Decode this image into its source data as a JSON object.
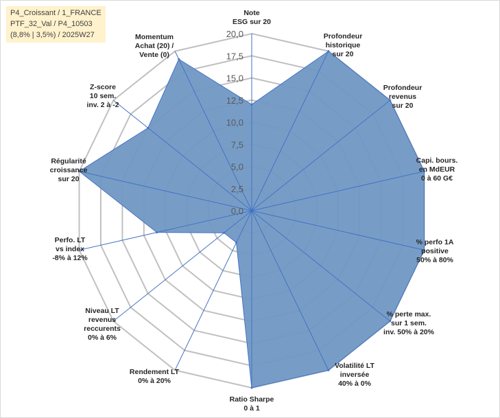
{
  "info_box": {
    "line1": "P4_Croissant / 1_FRANCE",
    "line2": "PTF_32_Val / P4_10503",
    "line3": "(8,8% | 3,5%) / 2025W27"
  },
  "colors": {
    "fill": "#7098c4",
    "stroke": "#4472c4",
    "grid": "#c0c0c0",
    "info_bg": "#fff2cc"
  },
  "chart_data": {
    "type": "radar",
    "rmax": 20,
    "tick_values": [
      0,
      2.5,
      5,
      7.5,
      10,
      12.5,
      15,
      17.5,
      20
    ],
    "tick_labels": [
      "0,0",
      "2,5",
      "5,0",
      "7,5",
      "10,0",
      "12,5",
      "15,0",
      "17,5",
      "20,0"
    ],
    "axes": [
      {
        "label": [
          "Note",
          "ESG sur 20"
        ],
        "value": 12
      },
      {
        "label": [
          "Profondeur",
          "historique",
          "sur 20"
        ],
        "value": 20
      },
      {
        "label": [
          "Profondeur",
          "revenus",
          "sur 20"
        ],
        "value": 20
      },
      {
        "label": [
          "Capi. bours.",
          "en MdEUR",
          "0 à 60 G€"
        ],
        "value": 20
      },
      {
        "label": [
          "% perfo 1A",
          "positive",
          "50% à 80%"
        ],
        "value": 20
      },
      {
        "label": [
          "% perte max.",
          "sur 1 sem.",
          "inv. 50% à 20%"
        ],
        "value": 20
      },
      {
        "label": [
          "Volatilité LT",
          "inversée",
          "40% à 0%"
        ],
        "value": 20
      },
      {
        "label": [
          "Ratio Sharpe",
          "0 à 1"
        ],
        "value": 20
      },
      {
        "label": [
          "Rendement LT",
          "0% à 20%"
        ],
        "value": 4
      },
      {
        "label": [
          "Niveau LT",
          "revenus",
          "reccurents",
          "0% à 6%"
        ],
        "value": 4
      },
      {
        "label": [
          "Perfo. LT",
          "vs index",
          "-8% à 12%"
        ],
        "value": 11
      },
      {
        "label": [
          "Régularité",
          "croissance",
          "sur 20"
        ],
        "value": 20
      },
      {
        "label": [
          "Z-score",
          "10 sem.",
          "inv. 2 à -2"
        ],
        "value": 15
      },
      {
        "label": [
          "Momentum",
          "Achat (20) /",
          "Vente (0)"
        ],
        "value": 19
      }
    ]
  }
}
